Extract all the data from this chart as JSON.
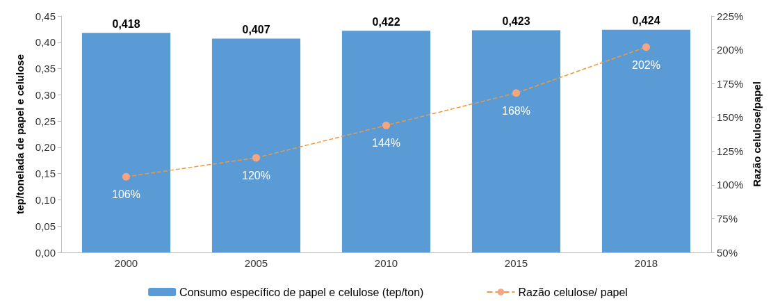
{
  "chart_data": {
    "type": "bar",
    "categories": [
      "2000",
      "2005",
      "2010",
      "2015",
      "2018"
    ],
    "ylabel": "tep/tonelada de papel e celulose",
    "y2label": "Razão celulose/papel",
    "ylim": [
      0,
      0.45
    ],
    "yticks": [
      {
        "value": 0,
        "label": "0,00"
      },
      {
        "value": 0.05,
        "label": "0,05"
      },
      {
        "value": 0.1,
        "label": "0,10"
      },
      {
        "value": 0.15,
        "label": "0,15"
      },
      {
        "value": 0.2,
        "label": "0,20"
      },
      {
        "value": 0.25,
        "label": "0,25"
      },
      {
        "value": 0.3,
        "label": "0,30"
      },
      {
        "value": 0.35,
        "label": "0,35"
      },
      {
        "value": 0.4,
        "label": "0,40"
      },
      {
        "value": 0.45,
        "label": "0,45"
      }
    ],
    "y2lim": [
      50,
      225
    ],
    "y2ticks": [
      {
        "value": 50,
        "label": "50%"
      },
      {
        "value": 75,
        "label": "75%"
      },
      {
        "value": 100,
        "label": "100%"
      },
      {
        "value": 125,
        "label": "125%"
      },
      {
        "value": 150,
        "label": "150%"
      },
      {
        "value": 175,
        "label": "175%"
      },
      {
        "value": 200,
        "label": "200%"
      },
      {
        "value": 225,
        "label": "225%"
      }
    ],
    "series": [
      {
        "name": "Consumo específico de papel e celulose (tep/ton)",
        "color": "#5b9bd5",
        "values": [
          0.418,
          0.407,
          0.422,
          0.423,
          0.424
        ],
        "value_labels": [
          "0,418",
          "0,407",
          "0,422",
          "0,423",
          "0,424"
        ]
      },
      {
        "name": "Razão celulose/ papel",
        "type": "line",
        "axis": "y2",
        "color": "#f4a582",
        "values": [
          106,
          120,
          144,
          168,
          202
        ],
        "value_labels": [
          "106%",
          "120%",
          "144%",
          "168%",
          "202%"
        ],
        "marker": "circle",
        "line_style": "dashed"
      }
    ],
    "legend": "bottom",
    "grid": false
  }
}
